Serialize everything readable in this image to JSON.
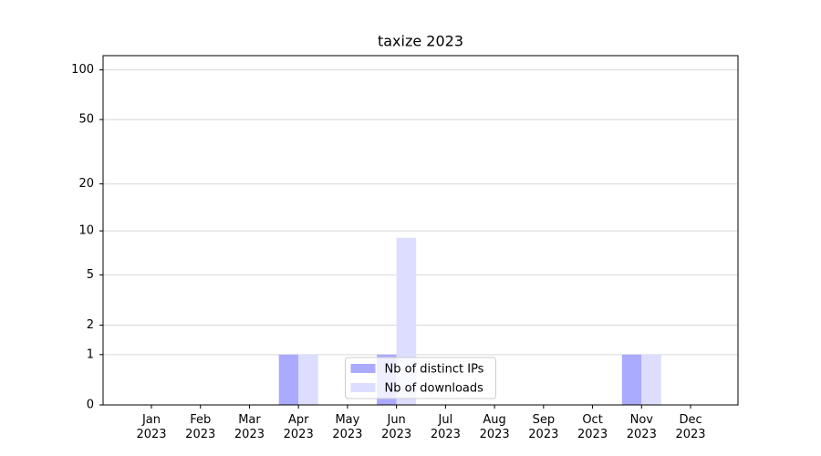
{
  "chart_data": {
    "type": "bar",
    "title": "taxize 2023",
    "categories": [
      "Jan\n2023",
      "Feb\n2023",
      "Mar\n2023",
      "Apr\n2023",
      "May\n2023",
      "Jun\n2023",
      "Jul\n2023",
      "Aug\n2023",
      "Sep\n2023",
      "Oct\n2023",
      "Nov\n2023",
      "Dec\n2023"
    ],
    "series": [
      {
        "name": "Nb of distinct IPs",
        "color": "#aaaaff",
        "values": [
          0,
          0,
          0,
          1,
          0,
          1,
          0,
          0,
          0,
          0,
          1,
          0
        ]
      },
      {
        "name": "Nb of downloads",
        "color": "#ddddff",
        "values": [
          0,
          0,
          0,
          1,
          0,
          9,
          0,
          0,
          0,
          0,
          1,
          0
        ]
      }
    ],
    "yscale": "log1p",
    "ylim": [
      0,
      122
    ],
    "yticks": [
      0,
      1,
      2,
      5,
      10,
      20,
      50,
      100
    ],
    "grid": true,
    "legend": "lower center"
  }
}
